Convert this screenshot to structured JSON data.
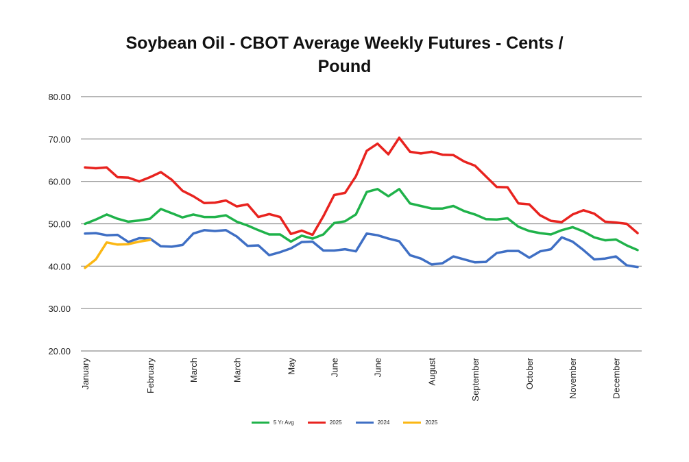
{
  "chart_data": {
    "type": "line",
    "title_line1": "Soybean Oil - CBOT Average Weekly Futures - Cents /",
    "title_line2": "Pound",
    "ylim": [
      20,
      80
    ],
    "yticks": [
      "80.00",
      "70.00",
      "60.00",
      "50.00",
      "40.00",
      "30.00",
      "20.00"
    ],
    "ytick_values": [
      80,
      70,
      60,
      50,
      40,
      30,
      20
    ],
    "weeks": 52,
    "x_labels": [
      {
        "week": 0,
        "label": "January"
      },
      {
        "week": 6,
        "label": "February"
      },
      {
        "week": 10,
        "label": "March"
      },
      {
        "week": 14,
        "label": "March"
      },
      {
        "week": 19,
        "label": "May"
      },
      {
        "week": 23,
        "label": "June"
      },
      {
        "week": 27,
        "label": "June"
      },
      {
        "week": 32,
        "label": "August"
      },
      {
        "week": 36,
        "label": "September"
      },
      {
        "week": 41,
        "label": "October"
      },
      {
        "week": 45,
        "label": "November"
      },
      {
        "week": 49,
        "label": "December"
      }
    ],
    "grid": true,
    "legend_position": "bottom",
    "series": [
      {
        "name": "5 Yr Avg",
        "color": "#1fb24a",
        "values": [
          50.0,
          51.0,
          52.2,
          51.2,
          50.5,
          50.8,
          51.2,
          53.5,
          52.5,
          51.5,
          52.2,
          51.6,
          51.6,
          52.0,
          50.5,
          49.6,
          48.5,
          47.5,
          47.5,
          45.8,
          47.2,
          46.5,
          47.5,
          50.2,
          50.6,
          52.2,
          57.5,
          58.2,
          56.5,
          58.2,
          54.8,
          54.2,
          53.6,
          53.6,
          54.2,
          53.0,
          52.2,
          51.1,
          51.0,
          51.3,
          49.3,
          48.3,
          47.8,
          47.5,
          48.5,
          49.2,
          48.2,
          46.8,
          46.1,
          46.3,
          44.9,
          43.8
        ]
      },
      {
        "name": "2025",
        "color": "#e8231f",
        "values": [
          63.3,
          63.1,
          63.3,
          61.0,
          60.9,
          60.0,
          61.0,
          62.2,
          60.4,
          57.8,
          56.5,
          54.9,
          55.0,
          55.5,
          54.1,
          54.6,
          51.6,
          52.3,
          51.6,
          47.6,
          48.4,
          47.4,
          51.8,
          56.8,
          57.3,
          61.2,
          67.2,
          68.9,
          66.4,
          70.3,
          67.0,
          66.6,
          67.0,
          66.3,
          66.2,
          64.7,
          63.7,
          61.2,
          58.7,
          58.6,
          54.8,
          54.6,
          52.0,
          50.7,
          50.4,
          52.2,
          53.2,
          52.4,
          50.5,
          50.3,
          50.0,
          47.8
        ]
      },
      {
        "name": "2024",
        "color": "#3f6fc4",
        "values": [
          47.7,
          47.8,
          47.3,
          47.4,
          45.7,
          46.6,
          46.5,
          44.7,
          44.6,
          45.0,
          47.7,
          48.5,
          48.3,
          48.5,
          47.0,
          44.8,
          44.9,
          42.6,
          43.3,
          44.2,
          45.7,
          45.8,
          43.7,
          43.7,
          44.0,
          43.5,
          47.7,
          47.3,
          46.5,
          45.9,
          42.6,
          41.8,
          40.4,
          40.7,
          42.3,
          41.6,
          40.9,
          41.0,
          43.1,
          43.6,
          43.6,
          42.0,
          43.5,
          44.0,
          46.8,
          45.8,
          43.8,
          41.6,
          41.8,
          42.3,
          40.2,
          39.8
        ]
      },
      {
        "name": "2025",
        "color": "#fbb714",
        "values": [
          39.6,
          41.6,
          45.6,
          45.1,
          45.2,
          45.8,
          46.2
        ]
      }
    ]
  }
}
